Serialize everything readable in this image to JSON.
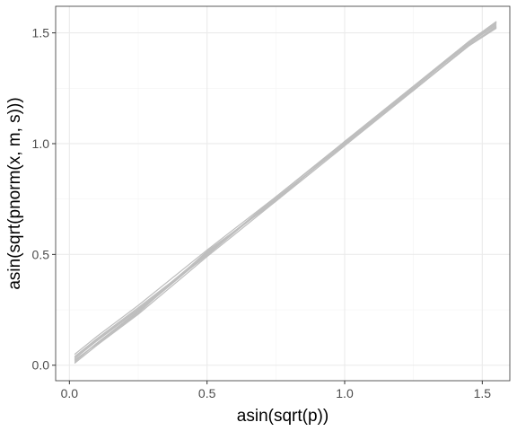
{
  "chart_data": {
    "type": "line",
    "title": "",
    "xlabel": "asin(sqrt(p))",
    "ylabel": "asin(sqrt(pnorm(x, m, s)))",
    "xlim": [
      -0.05,
      1.6
    ],
    "ylim": [
      -0.07,
      1.62
    ],
    "x_ticks": [
      0.0,
      0.5,
      1.0,
      1.5
    ],
    "y_ticks": [
      0.0,
      0.5,
      1.0,
      1.5
    ],
    "x_tick_labels": [
      "0.0",
      "0.5",
      "1.0",
      "1.5"
    ],
    "y_tick_labels": [
      "0.0",
      "0.5",
      "1.0",
      "1.5"
    ],
    "grid": true,
    "legend": "none",
    "series_color": "#bebebe",
    "series": [
      {
        "x": [
          0.02,
          0.1,
          0.25,
          0.5,
          0.75,
          1.0,
          1.25,
          1.45,
          1.55
        ],
        "y": [
          0.03,
          0.11,
          0.25,
          0.51,
          0.75,
          1.0,
          1.25,
          1.45,
          1.54
        ]
      },
      {
        "x": [
          0.02,
          0.1,
          0.25,
          0.5,
          0.75,
          1.0,
          1.25,
          1.45,
          1.55
        ],
        "y": [
          0.01,
          0.09,
          0.23,
          0.49,
          0.74,
          0.99,
          1.24,
          1.44,
          1.52
        ]
      },
      {
        "x": [
          0.02,
          0.1,
          0.25,
          0.5,
          0.75,
          1.0,
          1.25,
          1.45,
          1.55
        ],
        "y": [
          0.05,
          0.13,
          0.27,
          0.52,
          0.76,
          1.01,
          1.26,
          1.46,
          1.55
        ]
      },
      {
        "x": [
          0.02,
          0.1,
          0.25,
          0.5,
          0.75,
          1.0,
          1.25,
          1.45,
          1.55
        ],
        "y": [
          0.02,
          0.1,
          0.24,
          0.5,
          0.75,
          0.995,
          1.245,
          1.44,
          1.53
        ]
      },
      {
        "x": [
          0.02,
          0.1,
          0.25,
          0.5,
          0.75,
          1.0,
          1.25,
          1.45,
          1.55
        ],
        "y": [
          0.04,
          0.12,
          0.26,
          0.5,
          0.76,
          1.005,
          1.255,
          1.455,
          1.545
        ]
      },
      {
        "x": [
          0.02,
          0.1,
          0.25,
          0.5,
          0.75,
          1.0,
          1.25,
          1.45,
          1.55
        ],
        "y": [
          0.015,
          0.1,
          0.245,
          0.505,
          0.745,
          1.0,
          1.25,
          1.45,
          1.535
        ]
      },
      {
        "x": [
          0.02,
          0.1,
          0.25,
          0.5,
          0.75,
          1.0,
          1.25,
          1.45,
          1.55
        ],
        "y": [
          0.035,
          0.115,
          0.255,
          0.495,
          0.755,
          0.995,
          1.255,
          1.46,
          1.55
        ]
      },
      {
        "x": [
          0.02,
          0.1,
          0.25,
          0.5,
          0.75,
          1.0,
          1.25,
          1.45,
          1.55
        ],
        "y": [
          0.025,
          0.095,
          0.235,
          0.515,
          0.74,
          1.01,
          1.24,
          1.445,
          1.525
        ]
      }
    ]
  }
}
